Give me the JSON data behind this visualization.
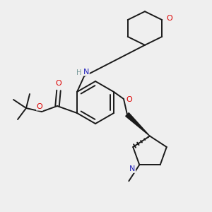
{
  "background_color": "#efefef",
  "bond_color": "#1a1a1a",
  "atom_colors": {
    "O": "#dd0000",
    "N": "#2222bb",
    "H": "#779999",
    "C": "#1a1a1a"
  },
  "figsize": [
    3.0,
    3.0
  ],
  "dpi": 100,
  "lw": 1.4
}
